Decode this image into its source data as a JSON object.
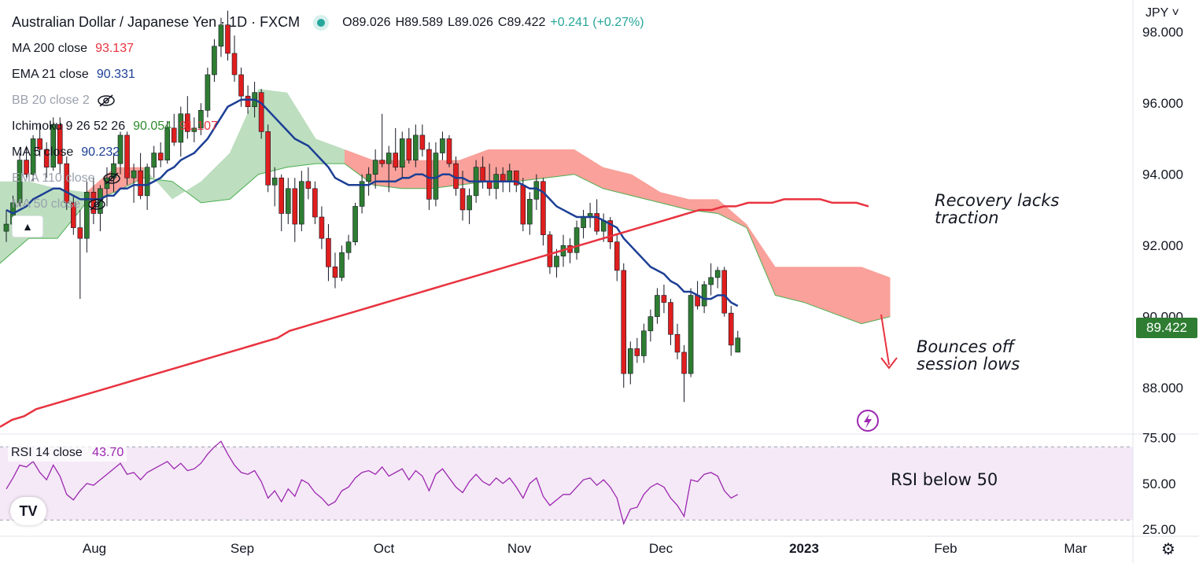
{
  "header": {
    "title": "Australian Dollar / Japanese Yen · 1D · FXCM",
    "open": "O89.026",
    "high": "H89.589",
    "low": "L89.026",
    "close": "C89.422",
    "change": "+0.241 (+0.27%)"
  },
  "indicators": [
    {
      "label": "MA 200 close",
      "value": "93.137",
      "color": "#e8333f"
    },
    {
      "label": "EMA 21 close",
      "value": "90.331",
      "color": "#1c3f95"
    },
    {
      "label": "BB 20 close 2",
      "value": "",
      "hidden": true
    },
    {
      "label": "Ichimoku 9 26 52 26",
      "value": "90.054",
      "value2": "91.107",
      "color": "#2e8b2e",
      "color2": "#e8333f"
    },
    {
      "label": "MA 5 close",
      "value": "90.232",
      "color": "#1c3f95"
    },
    {
      "label": "EMA 110 close",
      "value": "",
      "hidden": true
    },
    {
      "label": "MA 50 close",
      "value": "",
      "hidden": true
    }
  ],
  "currency": "JPY",
  "last_price": "89.422",
  "annotations": {
    "recovery": [
      "Recovery lacks",
      "traction"
    ],
    "bounce": [
      "Bounces off",
      "session lows"
    ],
    "rsi_note": "RSI below 50"
  },
  "rsi_legend": {
    "label": "RSI 14 close",
    "value": "43.70"
  },
  "tv_logo": "TV",
  "chart_data": {
    "type": "candlestick",
    "x_ticks": [
      "Aug",
      "Sep",
      "Oct",
      "Nov",
      "Dec",
      "2023",
      "Feb",
      "Mar"
    ],
    "y_ticks": [
      "98.000",
      "96.000",
      "94.000",
      "92.000",
      "90.000",
      "88.000"
    ],
    "rsi_ticks": [
      "75.00",
      "50.00",
      "25.00"
    ],
    "ylim": [
      86.7,
      98.9
    ],
    "rsi_ylim": [
      22,
      77
    ],
    "rsi_band": [
      30,
      70
    ],
    "candles": [
      [
        92.4,
        93.0,
        92.1,
        92.6
      ],
      [
        92.6,
        93.4,
        92.5,
        93.2
      ],
      [
        93.2,
        94.6,
        93.1,
        94.4
      ],
      [
        94.4,
        94.8,
        93.9,
        94.0
      ],
      [
        94.0,
        95.1,
        93.8,
        95.0
      ],
      [
        95.0,
        95.4,
        94.5,
        94.7
      ],
      [
        94.7,
        94.9,
        93.9,
        94.2
      ],
      [
        94.2,
        95.6,
        94.1,
        95.4
      ],
      [
        95.4,
        95.6,
        94.0,
        94.3
      ],
      [
        94.3,
        94.5,
        93.0,
        93.2
      ],
      [
        93.2,
        93.4,
        92.3,
        92.5
      ],
      [
        92.5,
        93.0,
        90.5,
        92.2
      ],
      [
        92.2,
        93.8,
        91.8,
        93.5
      ],
      [
        93.5,
        93.9,
        92.6,
        92.9
      ],
      [
        92.9,
        93.7,
        92.4,
        93.6
      ],
      [
        93.6,
        94.2,
        93.1,
        93.9
      ],
      [
        93.9,
        94.6,
        93.5,
        94.3
      ],
      [
        94.3,
        95.2,
        94.0,
        95.1
      ],
      [
        95.1,
        95.2,
        93.7,
        93.9
      ],
      [
        93.9,
        94.3,
        93.2,
        94.1
      ],
      [
        94.1,
        94.6,
        93.3,
        93.4
      ],
      [
        93.4,
        94.3,
        93.0,
        94.2
      ],
      [
        94.2,
        94.8,
        93.9,
        94.6
      ],
      [
        94.6,
        94.9,
        94.2,
        94.4
      ],
      [
        94.4,
        95.5,
        94.3,
        95.3
      ],
      [
        95.3,
        95.7,
        94.8,
        94.9
      ],
      [
        94.9,
        95.9,
        94.5,
        95.7
      ],
      [
        95.7,
        96.2,
        95.0,
        95.2
      ],
      [
        95.2,
        95.6,
        94.9,
        95.3
      ],
      [
        95.3,
        96.0,
        95.1,
        95.8
      ],
      [
        95.8,
        97.0,
        95.6,
        96.8
      ],
      [
        96.8,
        97.8,
        96.6,
        97.6
      ],
      [
        97.6,
        98.4,
        97.3,
        98.2
      ],
      [
        98.2,
        98.6,
        97.2,
        97.4
      ],
      [
        97.4,
        97.9,
        96.6,
        96.8
      ],
      [
        96.8,
        97.0,
        95.9,
        96.2
      ],
      [
        96.2,
        96.5,
        95.7,
        95.9
      ],
      [
        95.9,
        96.6,
        95.6,
        96.3
      ],
      [
        96.3,
        96.4,
        95.0,
        95.2
      ],
      [
        95.2,
        95.4,
        93.5,
        93.7
      ],
      [
        93.7,
        94.2,
        93.1,
        93.9
      ],
      [
        93.9,
        94.0,
        92.4,
        92.9
      ],
      [
        92.9,
        93.9,
        92.6,
        93.6
      ],
      [
        93.6,
        93.9,
        92.1,
        92.6
      ],
      [
        92.6,
        94.1,
        92.4,
        93.8
      ],
      [
        93.8,
        94.2,
        93.3,
        93.6
      ],
      [
        93.6,
        93.8,
        92.6,
        92.8
      ],
      [
        92.8,
        93.1,
        91.9,
        92.2
      ],
      [
        92.2,
        92.6,
        91.0,
        91.4
      ],
      [
        91.4,
        91.8,
        90.8,
        91.1
      ],
      [
        91.1,
        92.0,
        91.0,
        91.8
      ],
      [
        91.8,
        92.3,
        91.6,
        92.1
      ],
      [
        92.1,
        93.2,
        92.0,
        93.1
      ],
      [
        93.1,
        94.0,
        92.9,
        93.8
      ],
      [
        93.8,
        94.2,
        93.4,
        94.0
      ],
      [
        94.0,
        94.7,
        93.6,
        94.4
      ],
      [
        94.4,
        95.7,
        94.2,
        94.3
      ],
      [
        94.3,
        94.8,
        93.5,
        94.6
      ],
      [
        94.6,
        95.3,
        94.1,
        94.2
      ],
      [
        94.2,
        95.2,
        93.9,
        95.0
      ],
      [
        95.0,
        95.3,
        94.3,
        94.4
      ],
      [
        94.4,
        95.4,
        94.2,
        95.1
      ],
      [
        95.1,
        95.4,
        94.5,
        94.7
      ],
      [
        94.7,
        94.9,
        93.0,
        93.3
      ],
      [
        93.3,
        94.9,
        93.1,
        94.6
      ],
      [
        94.6,
        95.2,
        94.4,
        95.0
      ],
      [
        95.0,
        95.1,
        94.2,
        94.3
      ],
      [
        94.3,
        94.5,
        93.4,
        93.6
      ],
      [
        93.6,
        94.1,
        92.7,
        93.0
      ],
      [
        93.0,
        93.6,
        92.6,
        93.4
      ],
      [
        93.4,
        94.4,
        93.2,
        94.2
      ],
      [
        94.2,
        94.5,
        93.6,
        93.8
      ],
      [
        93.8,
        94.3,
        93.4,
        93.6
      ],
      [
        93.6,
        94.2,
        93.3,
        94.0
      ],
      [
        94.0,
        94.2,
        93.5,
        93.8
      ],
      [
        93.8,
        94.3,
        93.5,
        94.1
      ],
      [
        94.1,
        94.1,
        93.5,
        93.7
      ],
      [
        93.7,
        93.9,
        92.4,
        92.6
      ],
      [
        92.6,
        93.5,
        92.3,
        93.3
      ],
      [
        93.3,
        94.0,
        93.0,
        93.8
      ],
      [
        93.8,
        93.9,
        92.0,
        92.3
      ],
      [
        92.3,
        92.4,
        91.2,
        91.4
      ],
      [
        91.4,
        91.9,
        91.1,
        91.7
      ],
      [
        91.7,
        92.3,
        91.4,
        92.0
      ],
      [
        92.0,
        92.2,
        91.5,
        91.8
      ],
      [
        91.8,
        92.7,
        91.6,
        92.5
      ],
      [
        92.5,
        93.0,
        92.2,
        92.8
      ],
      [
        92.8,
        93.2,
        92.5,
        92.9
      ],
      [
        92.9,
        93.3,
        92.3,
        92.4
      ],
      [
        92.4,
        92.9,
        92.1,
        92.7
      ],
      [
        92.7,
        92.8,
        91.9,
        92.1
      ],
      [
        92.1,
        92.3,
        91.0,
        91.3
      ],
      [
        91.3,
        91.5,
        88.0,
        88.4
      ],
      [
        88.4,
        89.3,
        88.1,
        89.1
      ],
      [
        89.1,
        89.4,
        88.7,
        88.9
      ],
      [
        88.9,
        89.8,
        88.7,
        89.6
      ],
      [
        89.6,
        90.2,
        89.3,
        90.0
      ],
      [
        90.0,
        90.8,
        89.8,
        90.6
      ],
      [
        90.6,
        90.9,
        90.1,
        90.4
      ],
      [
        90.4,
        90.5,
        89.2,
        89.5
      ],
      [
        89.5,
        89.8,
        88.8,
        89.0
      ],
      [
        89.0,
        89.2,
        87.6,
        88.4
      ],
      [
        88.4,
        90.8,
        88.3,
        90.6
      ],
      [
        90.6,
        91.0,
        90.2,
        90.3
      ],
      [
        90.3,
        91.0,
        90.1,
        90.9
      ],
      [
        90.9,
        91.5,
        90.6,
        91.1
      ],
      [
        91.1,
        91.4,
        90.8,
        91.3
      ],
      [
        91.3,
        91.4,
        90.0,
        90.1
      ],
      [
        90.1,
        90.3,
        88.9,
        89.2
      ],
      [
        89.0,
        89.6,
        89.0,
        89.4
      ]
    ],
    "ema21": [
      93.0,
      92.9,
      93.0,
      93.1,
      93.3,
      93.4,
      93.5,
      93.6,
      93.6,
      93.5,
      93.4,
      93.3,
      93.3,
      93.3,
      93.3,
      93.4,
      93.4,
      93.6,
      93.6,
      93.7,
      93.7,
      93.7,
      93.8,
      93.9,
      94.1,
      94.2,
      94.4,
      94.5,
      94.6,
      94.8,
      95.0,
      95.3,
      95.6,
      95.9,
      96.0,
      96.1,
      96.1,
      96.1,
      96.0,
      95.8,
      95.6,
      95.4,
      95.2,
      95.0,
      94.9,
      94.8,
      94.6,
      94.4,
      94.2,
      93.9,
      93.8,
      93.7,
      93.7,
      93.7,
      93.7,
      93.8,
      93.8,
      93.8,
      93.8,
      93.9,
      93.9,
      94.0,
      94.0,
      93.9,
      93.9,
      94.0,
      94.0,
      93.9,
      93.9,
      93.8,
      93.8,
      93.8,
      93.8,
      93.8,
      93.8,
      93.8,
      93.8,
      93.7,
      93.6,
      93.6,
      93.5,
      93.3,
      93.1,
      93.0,
      92.9,
      92.8,
      92.8,
      92.8,
      92.8,
      92.7,
      92.6,
      92.5,
      92.2,
      92.0,
      91.8,
      91.6,
      91.4,
      91.3,
      91.2,
      91.0,
      90.9,
      90.7,
      90.7,
      90.6,
      90.5,
      90.5,
      90.6,
      90.6,
      90.4,
      90.3
    ],
    "ma200": [
      86.9,
      87.1,
      87.2,
      87.4,
      87.5,
      87.6,
      87.7,
      87.8,
      87.9,
      88.0,
      88.1,
      88.2,
      88.3,
      88.4,
      88.5,
      88.6,
      88.7,
      88.8,
      88.9,
      89.0,
      89.1,
      89.2,
      89.3,
      89.4,
      89.6,
      89.7,
      89.8,
      89.9,
      90.0,
      90.1,
      90.2,
      90.3,
      90.4,
      90.5,
      90.6,
      90.7,
      90.8,
      90.9,
      91.0,
      91.1,
      91.2,
      91.3,
      91.4,
      91.5,
      91.6,
      91.7,
      91.8,
      91.9,
      92.0,
      92.1,
      92.2,
      92.3,
      92.4,
      92.5,
      92.6,
      92.7,
      92.8,
      92.9,
      93.0,
      93.0,
      93.1,
      93.1,
      93.2,
      93.2,
      93.2,
      93.3,
      93.3,
      93.3,
      93.3,
      93.2,
      93.2,
      93.2,
      93.1
    ],
    "cloud": [
      [
        91.5,
        93.8
      ],
      [
        92.2,
        93.8
      ],
      [
        92.2,
        93.6
      ],
      [
        93.2,
        93.5
      ],
      [
        93.5,
        94.2
      ],
      [
        93.9,
        94.2
      ],
      [
        93.8,
        93.3
      ],
      [
        93.2,
        93.8
      ],
      [
        93.3,
        94.6
      ],
      [
        94.0,
        96.4
      ],
      [
        94.2,
        96.3
      ],
      [
        94.3,
        95.0
      ],
      [
        94.3,
        94.7
      ],
      [
        93.7,
        94.4
      ],
      [
        93.6,
        94.4
      ],
      [
        93.6,
        94.4
      ],
      [
        93.7,
        94.4
      ],
      [
        93.8,
        94.7
      ],
      [
        93.8,
        94.7
      ],
      [
        93.9,
        94.7
      ],
      [
        94.0,
        94.7
      ],
      [
        93.6,
        94.2
      ],
      [
        93.4,
        94.0
      ],
      [
        93.2,
        93.5
      ],
      [
        93.0,
        93.3
      ],
      [
        92.9,
        93.3
      ],
      [
        92.5,
        92.6
      ],
      [
        90.6,
        91.4
      ],
      [
        90.4,
        91.4
      ],
      [
        90.1,
        91.4
      ],
      [
        89.8,
        91.4
      ],
      [
        90.0,
        91.1
      ]
    ],
    "rsi": [
      47,
      53,
      60,
      59,
      62,
      56,
      52,
      60,
      54,
      44,
      41,
      46,
      50,
      49,
      52,
      55,
      58,
      61,
      55,
      56,
      52,
      56,
      58,
      60,
      62,
      58,
      61,
      57,
      58,
      61,
      66,
      70,
      73,
      66,
      60,
      56,
      55,
      57,
      51,
      42,
      46,
      40,
      47,
      43,
      52,
      50,
      45,
      42,
      38,
      40,
      46,
      48,
      53,
      56,
      57,
      55,
      59,
      54,
      56,
      58,
      52,
      57,
      54,
      46,
      55,
      58,
      53,
      48,
      45,
      51,
      55,
      51,
      49,
      53,
      50,
      53,
      48,
      42,
      50,
      53,
      43,
      38,
      41,
      44,
      44,
      48,
      52,
      53,
      49,
      52,
      48,
      42,
      28,
      36,
      37,
      44,
      48,
      50,
      48,
      42,
      38,
      32,
      52,
      51,
      55,
      56,
      54,
      46,
      42,
      44
    ]
  }
}
